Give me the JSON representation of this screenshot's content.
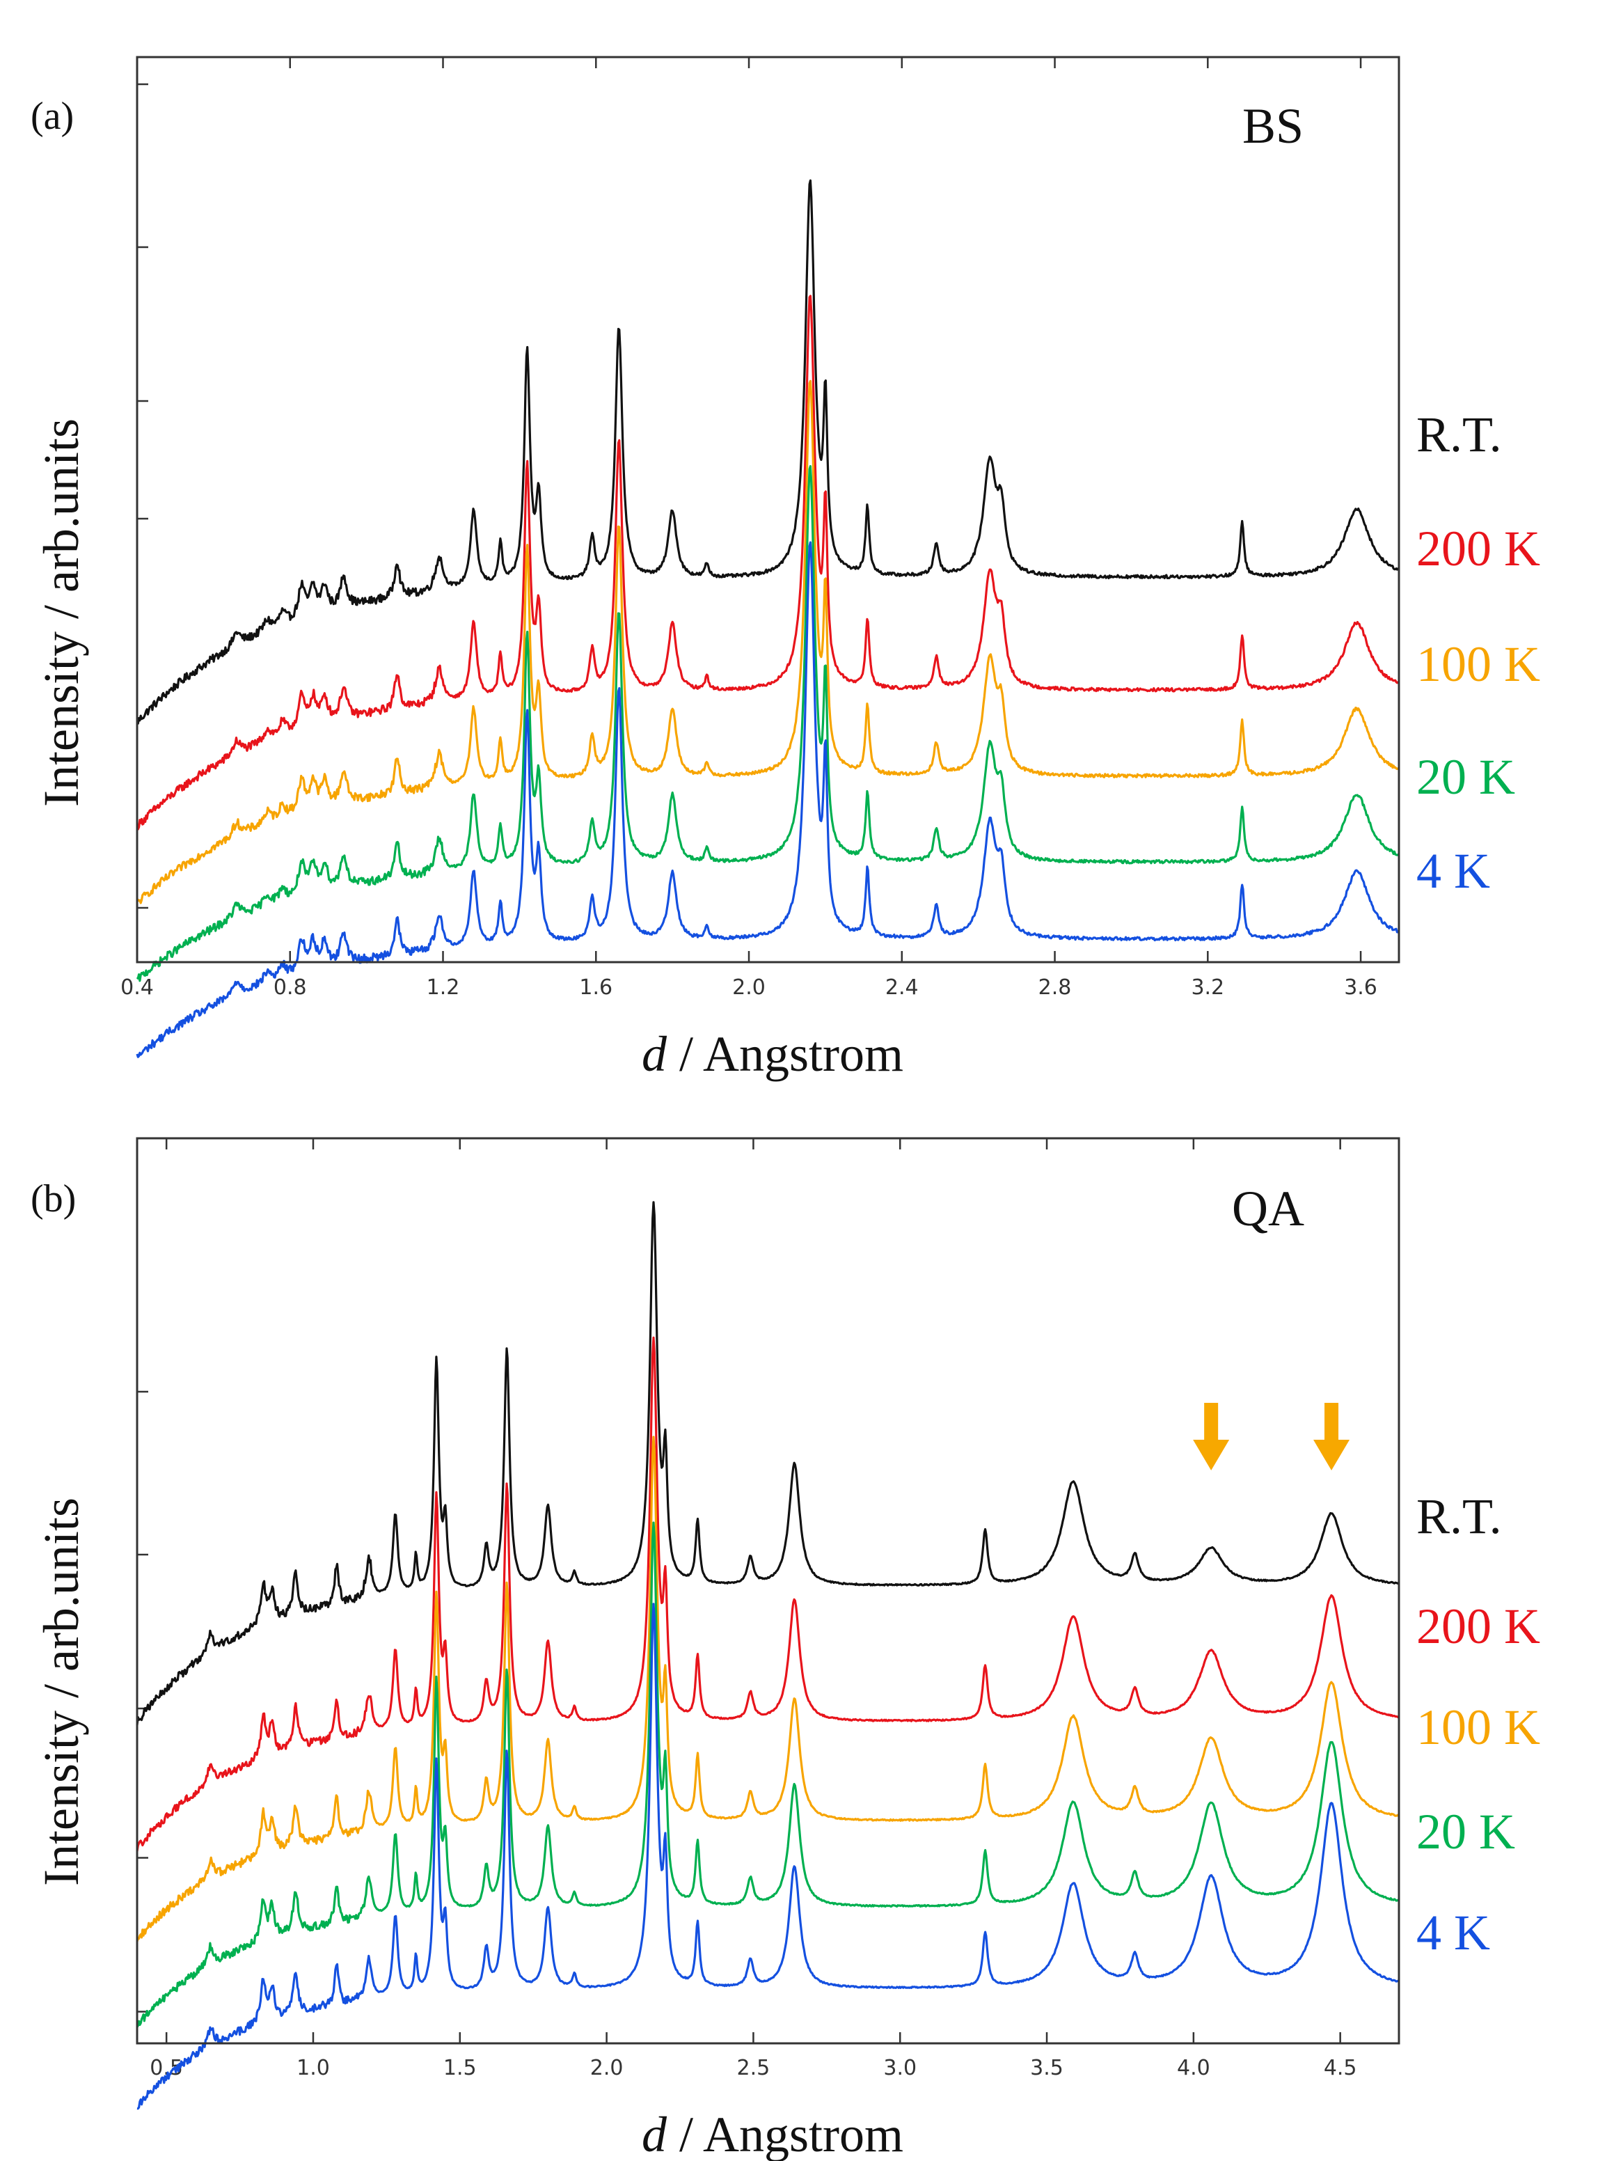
{
  "chart_data": [
    {
      "type": "line",
      "panel_label": "(a)",
      "sample": "BS",
      "xlabel_symbol": "d",
      "xlabel_text": "/ Angstrom",
      "ylabel": "Intensity / arb.units",
      "xlim": [
        0.4,
        3.7
      ],
      "xticks": [
        "0.4",
        "0.8",
        "1.2",
        "1.6",
        "2.0",
        "2.4",
        "2.8",
        "3.2",
        "3.6"
      ],
      "xtick_values": [
        0.4,
        0.8,
        1.2,
        1.6,
        2.0,
        2.4,
        2.8,
        3.2,
        3.6
      ],
      "ylim": [
        0,
        10
      ],
      "yticks": [
        0.6,
        4.9,
        6.2,
        7.9,
        9.7
      ],
      "series": [
        {
          "name": "R.T.",
          "color": "#111111",
          "offset": 4.25,
          "lowscale": 1.6
        },
        {
          "name": "200 K",
          "color": "#e8141b",
          "offset": 3.0,
          "lowscale": 1.5
        },
        {
          "name": "100 K",
          "color": "#f7a400",
          "offset": 2.05,
          "lowscale": 1.4
        },
        {
          "name": "20 K",
          "color": "#00b050",
          "offset": 1.1,
          "lowscale": 1.3
        },
        {
          "name": "4 K",
          "color": "#1450e0",
          "offset": 0.25,
          "lowscale": 1.3
        }
      ],
      "peaks": [
        {
          "d": 0.66,
          "h": 0.15,
          "w": 0.012
        },
        {
          "d": 0.74,
          "h": 0.12,
          "w": 0.012
        },
        {
          "d": 0.78,
          "h": 0.14,
          "w": 0.01
        },
        {
          "d": 0.83,
          "h": 0.35,
          "w": 0.01
        },
        {
          "d": 0.86,
          "h": 0.3,
          "w": 0.01
        },
        {
          "d": 0.89,
          "h": 0.28,
          "w": 0.01
        },
        {
          "d": 0.94,
          "h": 0.35,
          "w": 0.01
        },
        {
          "d": 1.08,
          "h": 0.4,
          "w": 0.008
        },
        {
          "d": 1.19,
          "h": 0.38,
          "w": 0.012
        },
        {
          "d": 1.28,
          "h": 0.85,
          "w": 0.01
        },
        {
          "d": 1.35,
          "h": 0.45,
          "w": 0.006
        },
        {
          "d": 1.42,
          "h": 2.55,
          "w": 0.009
        },
        {
          "d": 1.45,
          "h": 0.9,
          "w": 0.008
        },
        {
          "d": 1.59,
          "h": 0.45,
          "w": 0.008
        },
        {
          "d": 1.66,
          "h": 2.8,
          "w": 0.011
        },
        {
          "d": 1.8,
          "h": 0.75,
          "w": 0.013
        },
        {
          "d": 1.89,
          "h": 0.15,
          "w": 0.006
        },
        {
          "d": 2.16,
          "h": 4.35,
          "w": 0.015
        },
        {
          "d": 2.2,
          "h": 1.7,
          "w": 0.006
        },
        {
          "d": 2.31,
          "h": 0.75,
          "w": 0.006
        },
        {
          "d": 2.49,
          "h": 0.35,
          "w": 0.008
        },
        {
          "d": 2.63,
          "h": 1.25,
          "w": 0.02
        },
        {
          "d": 2.66,
          "h": 0.6,
          "w": 0.012
        },
        {
          "d": 3.29,
          "h": 0.6,
          "w": 0.006
        },
        {
          "d": 3.59,
          "h": 0.75,
          "w": 0.04
        }
      ],
      "legend_labels": [
        "R.T.",
        "200 K",
        "100 K",
        "20 K",
        "4 K"
      ]
    },
    {
      "type": "line",
      "panel_label": "(b)",
      "sample": "QA",
      "xlabel_symbol": "d",
      "xlabel_text": "/ Angstrom",
      "ylabel": "Intensity / arb.units",
      "xlim": [
        0.4,
        4.7
      ],
      "xticks": [
        "0.5",
        "1.0",
        "1.5",
        "2.0",
        "2.5",
        "3.0",
        "3.5",
        "4.0",
        "4.5"
      ],
      "xtick_values": [
        0.5,
        1.0,
        1.5,
        2.0,
        2.5,
        3.0,
        3.5,
        4.0,
        4.5
      ],
      "ylim": [
        0,
        10
      ],
      "yticks": [
        0.35,
        2.05,
        3.7,
        5.4,
        7.2
      ],
      "arrows_at_d": [
        4.06,
        4.47
      ],
      "arrow_color": "#f7a800",
      "series": [
        {
          "name": "R.T.",
          "color": "#111111",
          "offset": 5.05,
          "lowscale": 1.5
        },
        {
          "name": "200 K",
          "color": "#e8141b",
          "offset": 3.55,
          "lowscale": 1.4
        },
        {
          "name": "100 K",
          "color": "#f7a400",
          "offset": 2.45,
          "lowscale": 1.3
        },
        {
          "name": "20 K",
          "color": "#00b050",
          "offset": 1.5,
          "lowscale": 1.3
        },
        {
          "name": "4 K",
          "color": "#1450e0",
          "offset": 0.6,
          "lowscale": 1.3
        }
      ],
      "peaks": [
        {
          "d": 0.65,
          "h": 0.2,
          "w": 0.012
        },
        {
          "d": 0.83,
          "h": 0.45,
          "w": 0.01
        },
        {
          "d": 0.86,
          "h": 0.35,
          "w": 0.01
        },
        {
          "d": 0.94,
          "h": 0.45,
          "w": 0.01
        },
        {
          "d": 1.08,
          "h": 0.45,
          "w": 0.008
        },
        {
          "d": 1.19,
          "h": 0.45,
          "w": 0.012
        },
        {
          "d": 1.28,
          "h": 0.9,
          "w": 0.01
        },
        {
          "d": 1.35,
          "h": 0.4,
          "w": 0.006
        },
        {
          "d": 1.42,
          "h": 2.55,
          "w": 0.01
        },
        {
          "d": 1.45,
          "h": 0.7,
          "w": 0.008
        },
        {
          "d": 1.59,
          "h": 0.45,
          "w": 0.01
        },
        {
          "d": 1.66,
          "h": 2.65,
          "w": 0.011
        },
        {
          "d": 1.8,
          "h": 0.9,
          "w": 0.014
        },
        {
          "d": 1.89,
          "h": 0.15,
          "w": 0.008
        },
        {
          "d": 2.16,
          "h": 4.2,
          "w": 0.015
        },
        {
          "d": 2.2,
          "h": 1.2,
          "w": 0.008
        },
        {
          "d": 2.31,
          "h": 0.7,
          "w": 0.008
        },
        {
          "d": 2.49,
          "h": 0.3,
          "w": 0.012
        },
        {
          "d": 2.64,
          "h": 1.35,
          "w": 0.022
        },
        {
          "d": 3.29,
          "h": 0.6,
          "w": 0.01
        },
        {
          "d": 3.59,
          "h": 1.15,
          "w": 0.045
        },
        {
          "d": 3.8,
          "h": 0.3,
          "w": 0.015
        },
        {
          "d": 4.06,
          "h": 0.9,
          "w": 0.05
        },
        {
          "d": 4.47,
          "h": 1.45,
          "w": 0.045
        }
      ],
      "peak_growth": {
        "4.06": [
          0.45,
          0.85,
          1.0,
          1.25,
          1.35
        ],
        "4.47": [
          0.55,
          0.95,
          1.05,
          1.25,
          1.4
        ]
      },
      "legend_labels": [
        "R.T.",
        "200 K",
        "100 K",
        "20 K",
        "4 K"
      ]
    }
  ]
}
